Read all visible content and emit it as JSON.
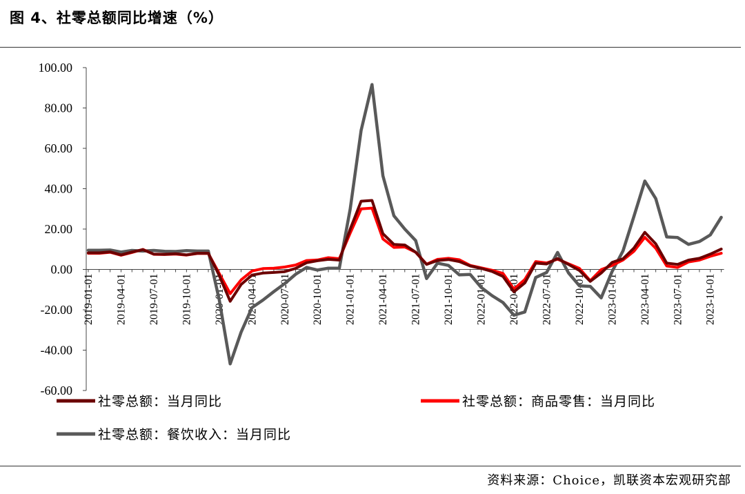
{
  "figure": {
    "title": "图 4、社零总额同比增速（%）",
    "source": "资料来源：Choice，凯联资本宏观研究部"
  },
  "chart_data": {
    "type": "line",
    "title": "",
    "xlabel": "",
    "ylabel": "",
    "ylim": [
      -60,
      100
    ],
    "y_ticks": [
      "100.00",
      "80.00",
      "60.00",
      "40.00",
      "20.00",
      "0.00",
      "-20.00",
      "-40.00",
      "-60.00"
    ],
    "y_tick_values": [
      100,
      80,
      60,
      40,
      20,
      0,
      -20,
      -40,
      -60
    ],
    "x": [
      "2019-01",
      "2019-02",
      "2019-03",
      "2019-04",
      "2019-05",
      "2019-06",
      "2019-07",
      "2019-08",
      "2019-09",
      "2019-10",
      "2019-11",
      "2019-12",
      "2020-01",
      "2020-02",
      "2020-03",
      "2020-04",
      "2020-05",
      "2020-06",
      "2020-07",
      "2020-08",
      "2020-09",
      "2020-10",
      "2020-11",
      "2020-12",
      "2021-01",
      "2021-02",
      "2021-03",
      "2021-04",
      "2021-05",
      "2021-06",
      "2021-07",
      "2021-08",
      "2021-09",
      "2021-10",
      "2021-11",
      "2021-12",
      "2022-01",
      "2022-02",
      "2022-03",
      "2022-04",
      "2022-05",
      "2022-06",
      "2022-07",
      "2022-08",
      "2022-09",
      "2022-10",
      "2022-11",
      "2022-12",
      "2023-01",
      "2023-02",
      "2023-03",
      "2023-04",
      "2023-05",
      "2023-06",
      "2023-07",
      "2023-08",
      "2023-09",
      "2023-10",
      "2023-11"
    ],
    "x_tick_labels": [
      "2019-01-01",
      "2019-04-01",
      "2019-07-01",
      "2019-10-01",
      "2020-01-01",
      "2020-04-01",
      "2020-07-01",
      "2020-10-01",
      "2021-01-01",
      "2021-04-01",
      "2021-07-01",
      "2021-10-01",
      "2022-01-01",
      "2022-04-01",
      "2022-07-01",
      "2022-10-01",
      "2023-01-01",
      "2023-04-01",
      "2023-07-01",
      "2023-10-01"
    ],
    "x_tick_indices": [
      0,
      3,
      6,
      9,
      12,
      15,
      18,
      21,
      24,
      27,
      30,
      33,
      36,
      39,
      42,
      45,
      48,
      51,
      54,
      57
    ],
    "legend_position": "bottom",
    "grid": false,
    "series": [
      {
        "name": "社零总额：当月同比",
        "color": "#6b0000",
        "values": [
          8.2,
          8.2,
          8.7,
          7.2,
          8.6,
          9.8,
          7.6,
          7.5,
          7.8,
          7.2,
          8.0,
          8.0,
          -3.0,
          -15.8,
          -7.5,
          -2.8,
          -1.8,
          -1.5,
          -1.1,
          0.5,
          3.3,
          4.3,
          5.0,
          4.6,
          20.0,
          33.8,
          34.2,
          17.7,
          12.4,
          12.1,
          8.5,
          2.5,
          4.4,
          4.9,
          3.9,
          1.7,
          0.5,
          -1.0,
          -3.5,
          -11.1,
          -6.7,
          3.1,
          2.7,
          5.4,
          2.5,
          -0.5,
          -5.9,
          -1.8,
          3.5,
          5.3,
          10.6,
          18.4,
          12.7,
          3.1,
          2.5,
          4.6,
          5.5,
          7.6,
          10.1
        ]
      },
      {
        "name": "社零总额：商品零售：当月同比",
        "color": "#ff0000",
        "values": [
          8.0,
          8.0,
          8.5,
          7.0,
          8.4,
          9.9,
          7.5,
          7.4,
          7.6,
          7.1,
          7.9,
          7.9,
          -2.0,
          -12.0,
          -5.2,
          -0.8,
          0.4,
          0.6,
          1.2,
          2.2,
          4.4,
          4.7,
          5.8,
          5.3,
          18.0,
          30.0,
          30.4,
          15.1,
          10.9,
          11.1,
          8.5,
          2.6,
          5.0,
          5.5,
          4.8,
          2.0,
          0.8,
          -0.4,
          -2.0,
          -9.7,
          -5.0,
          3.9,
          3.2,
          5.1,
          2.8,
          0.5,
          -5.6,
          -0.1,
          2.0,
          4.7,
          9.0,
          15.9,
          10.5,
          1.7,
          1.0,
          3.7,
          4.6,
          6.5,
          8.0
        ]
      },
      {
        "name": "社零总额：餐饮收入：当月同比",
        "color": "#595959",
        "values": [
          9.5,
          9.5,
          9.6,
          8.6,
          9.4,
          9.1,
          9.4,
          9.0,
          8.9,
          9.3,
          9.1,
          9.1,
          -15.0,
          -46.8,
          -31.1,
          -18.9,
          -15.2,
          -11.0,
          -7.0,
          -2.4,
          1.0,
          -0.3,
          0.6,
          0.6,
          30.0,
          68.9,
          91.6,
          46.4,
          26.6,
          20.0,
          14.3,
          -4.5,
          3.1,
          2.0,
          -2.7,
          -2.5,
          -8.9,
          -13.0,
          -16.4,
          -22.7,
          -21.1,
          -4.0,
          -1.5,
          8.4,
          -1.7,
          -8.1,
          -8.4,
          -14.1,
          -1.0,
          9.2,
          26.3,
          43.8,
          35.1,
          16.1,
          15.8,
          12.4,
          13.8,
          17.1,
          25.8
        ]
      }
    ]
  }
}
